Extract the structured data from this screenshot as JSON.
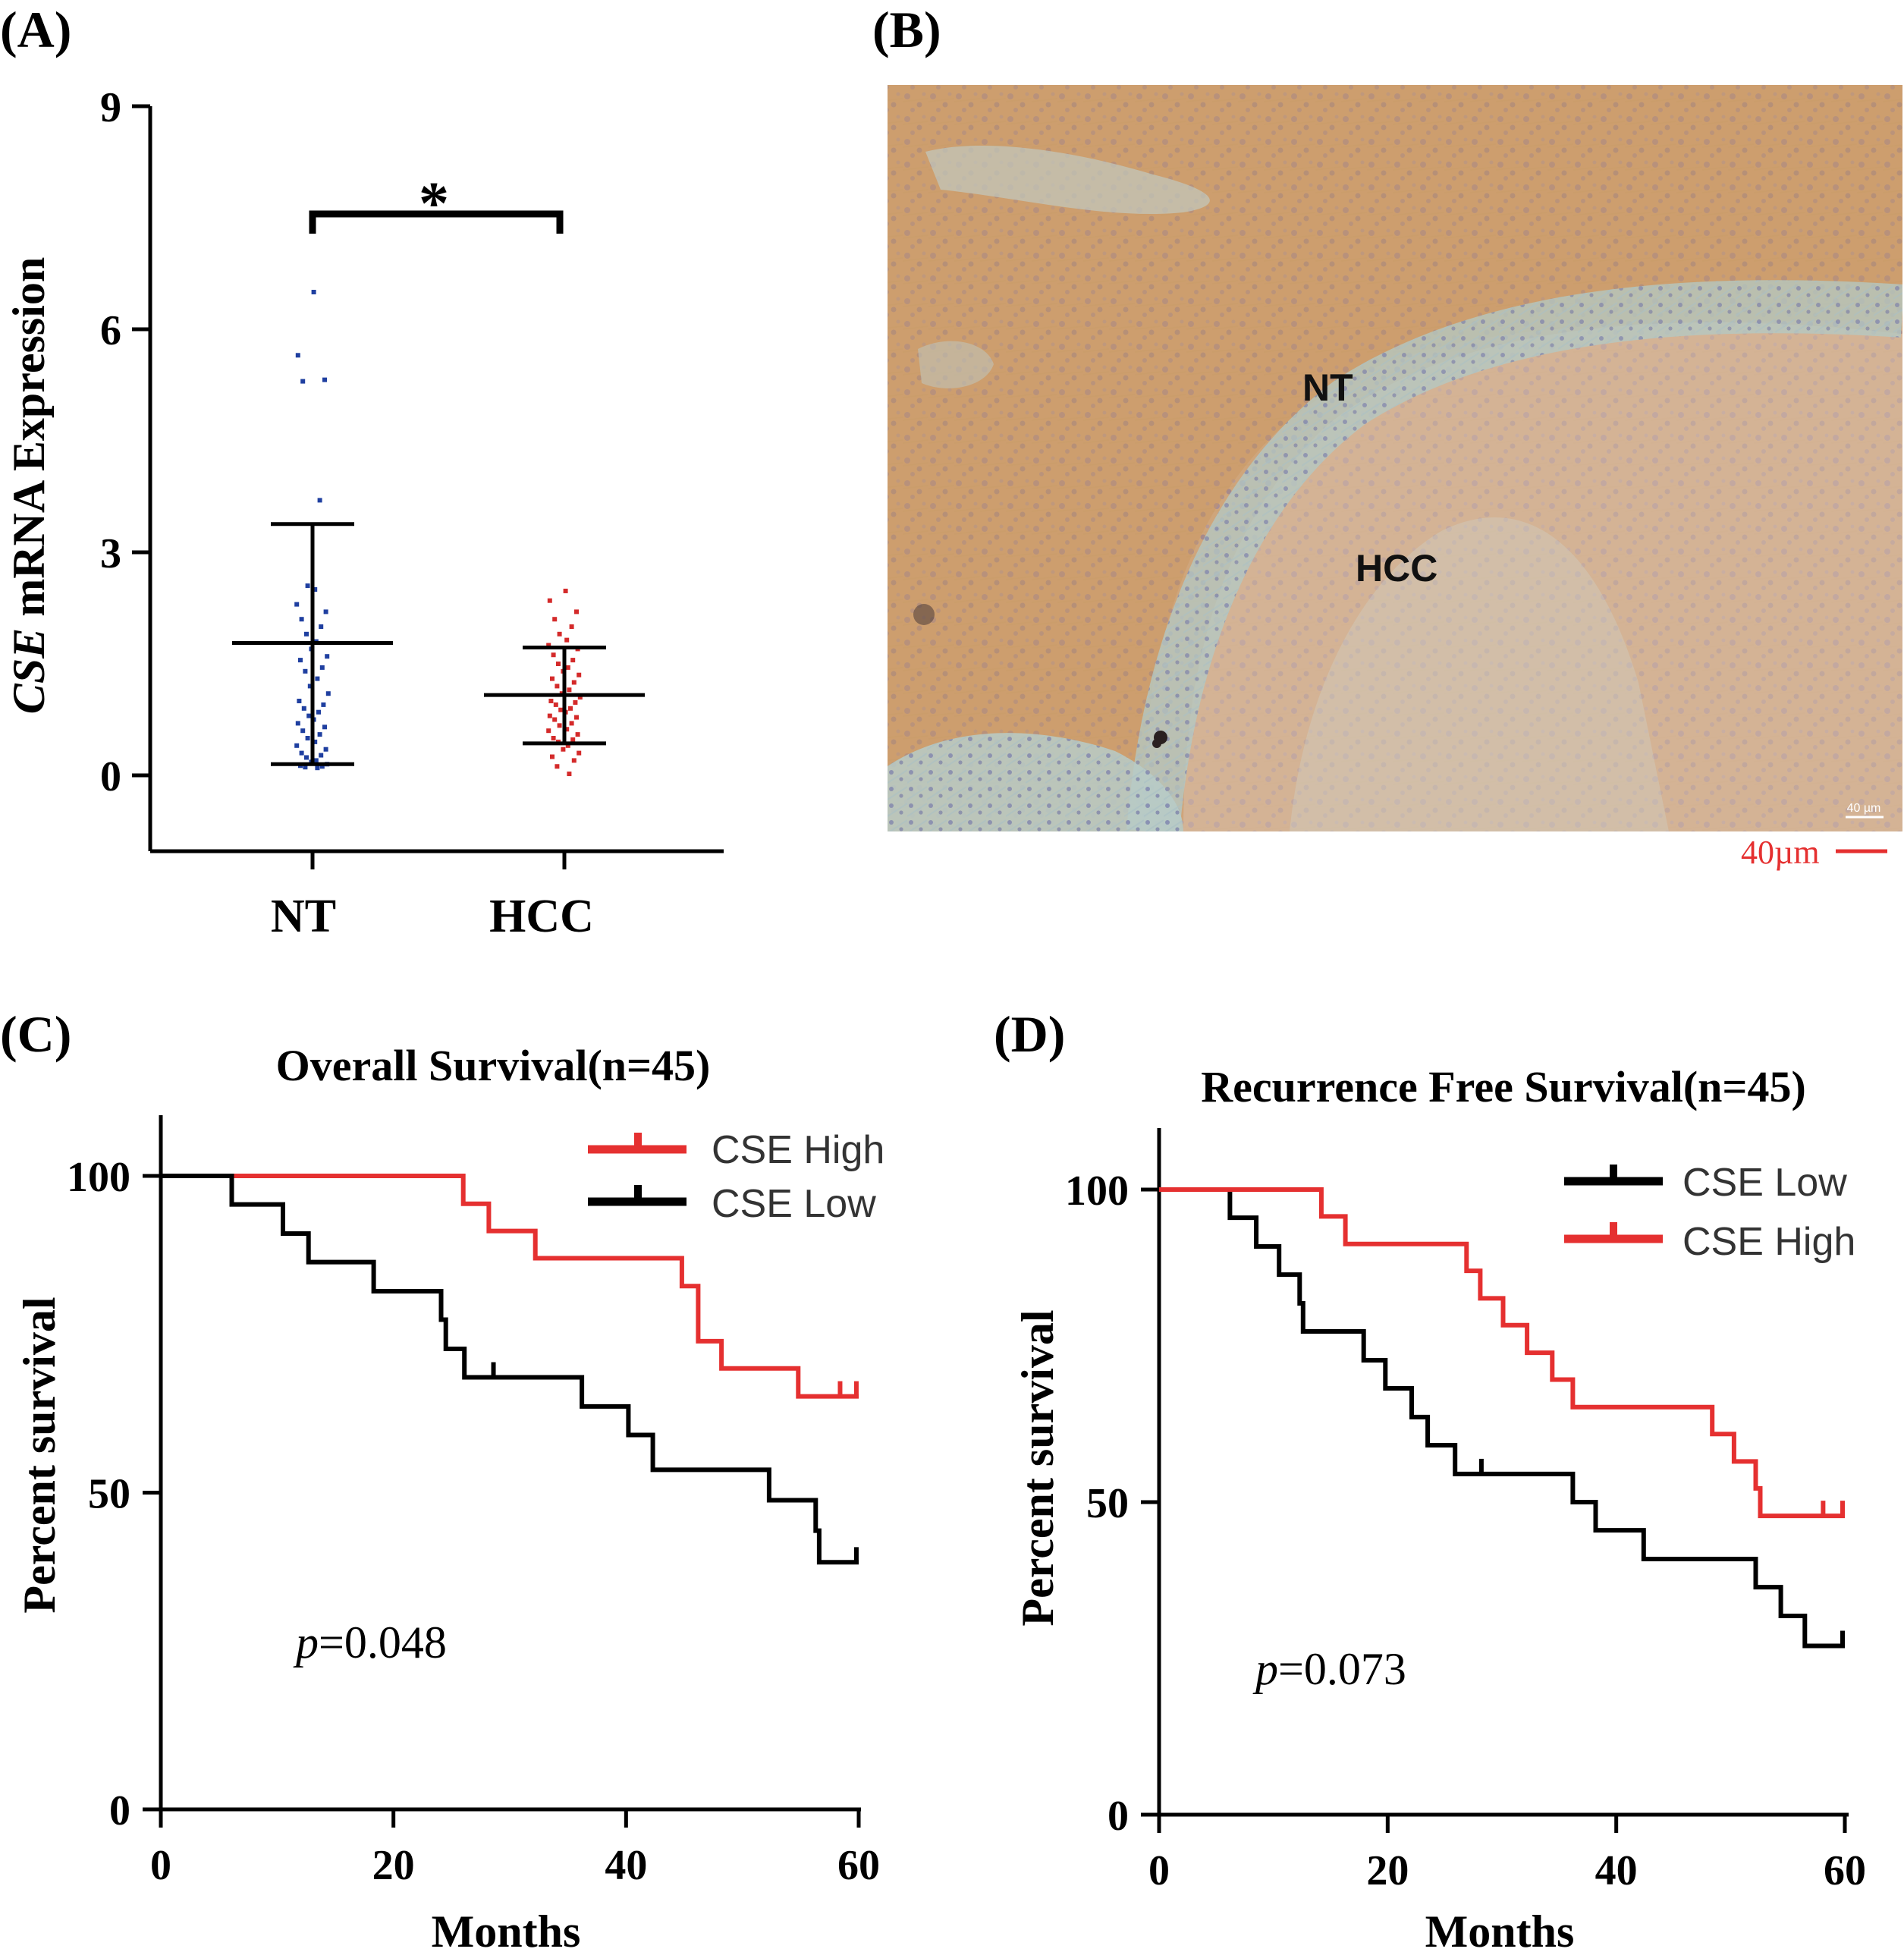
{
  "panels": {
    "a": "(A)",
    "b": "(B)",
    "c": "(C)",
    "d": "(D)"
  },
  "micrograph": {
    "label_nt": "NT",
    "label_hcc": "HCC",
    "scale_bar_text": "40µm",
    "inset_scale_text": "40 µm"
  },
  "chart_data": [
    {
      "id": "A",
      "type": "scatter",
      "title": "",
      "ylabel_italic": "CSE",
      "ylabel_rest": " mRNA Expression",
      "xlabel": "",
      "categories": [
        "NT",
        "HCC"
      ],
      "ylim": [
        -1,
        9
      ],
      "yticks": [
        0,
        3,
        6,
        9
      ],
      "significance": "*",
      "groups": [
        {
          "name": "NT",
          "color": "#1f3fa0",
          "mean": 1.78,
          "sd_low": 0.15,
          "sd_high": 3.38,
          "points": [
            6.5,
            5.65,
            5.32,
            5.3,
            3.7,
            2.55,
            2.5,
            2.3,
            2.2,
            2.1,
            2.0,
            1.9,
            1.8,
            1.7,
            1.6,
            1.55,
            1.45,
            1.4,
            1.3,
            1.2,
            1.1,
            1.0,
            0.95,
            0.9,
            0.85,
            0.8,
            0.75,
            0.7,
            0.65,
            0.6,
            0.55,
            0.5,
            0.45,
            0.4,
            0.35,
            0.3,
            0.27,
            0.24,
            0.2,
            0.18,
            0.15,
            0.13,
            0.12,
            0.11,
            0.1
          ]
        },
        {
          "name": "HCC",
          "color": "#d42a2a",
          "mean": 1.08,
          "sd_low": 0.43,
          "sd_high": 1.72,
          "points": [
            2.48,
            2.35,
            2.2,
            2.1,
            2.0,
            1.9,
            1.82,
            1.75,
            1.7,
            1.62,
            1.55,
            1.5,
            1.45,
            1.4,
            1.35,
            1.3,
            1.25,
            1.2,
            1.15,
            1.1,
            1.05,
            1.0,
            0.98,
            0.95,
            0.9,
            0.88,
            0.85,
            0.8,
            0.78,
            0.75,
            0.7,
            0.67,
            0.62,
            0.6,
            0.55,
            0.5,
            0.48,
            0.45,
            0.4,
            0.35,
            0.3,
            0.25,
            0.2,
            0.12,
            0.02
          ]
        }
      ]
    },
    {
      "id": "C",
      "type": "line",
      "title": "Overall Survival(n=45)",
      "xlabel": "Months",
      "ylabel": "Percent survival",
      "xlim": [
        0,
        60
      ],
      "ylim": [
        0,
        110
      ],
      "xticks": [
        0,
        20,
        40,
        60
      ],
      "yticks": [
        0,
        50,
        100
      ],
      "pvalue_italic": "p",
      "pvalue_rest": "=0.048",
      "legend_position": "top-right",
      "series": [
        {
          "name": "CSE High",
          "color": "#e53030",
          "steps": [
            [
              0,
              100
            ],
            [
              26,
              100
            ],
            [
              26,
              95.6
            ],
            [
              28.2,
              95.6
            ],
            [
              28.2,
              91.3
            ],
            [
              32.2,
              91.3
            ],
            [
              32.2,
              87
            ],
            [
              44.8,
              87
            ],
            [
              44.8,
              82.6
            ],
            [
              46.2,
              82.6
            ],
            [
              46.2,
              73.9
            ],
            [
              48.2,
              73.9
            ],
            [
              48.2,
              69.6
            ],
            [
              54.8,
              69.6
            ],
            [
              54.8,
              65.2
            ],
            [
              60,
              65.2
            ]
          ],
          "censors": [
            [
              58.4,
              65.2
            ],
            [
              59.8,
              65.2
            ]
          ]
        },
        {
          "name": "CSE Low",
          "color": "#000000",
          "steps": [
            [
              0,
              100
            ],
            [
              6.1,
              100
            ],
            [
              6.1,
              95.5
            ],
            [
              10.5,
              95.5
            ],
            [
              10.5,
              90.9
            ],
            [
              12.7,
              90.9
            ],
            [
              12.7,
              86.4
            ],
            [
              18.3,
              86.4
            ],
            [
              18.3,
              81.8
            ],
            [
              24.1,
              81.8
            ],
            [
              24.1,
              77.3
            ],
            [
              24.5,
              77.3
            ],
            [
              24.5,
              72.7
            ],
            [
              26.1,
              72.7
            ],
            [
              26.1,
              68.2
            ],
            [
              36.2,
              68.2
            ],
            [
              36.2,
              63.6
            ],
            [
              40.2,
              63.6
            ],
            [
              40.2,
              59.1
            ],
            [
              42.3,
              59.1
            ],
            [
              42.3,
              53.6
            ],
            [
              52.3,
              53.6
            ],
            [
              52.3,
              48.8
            ],
            [
              56.3,
              48.8
            ],
            [
              56.3,
              44
            ],
            [
              56.6,
              44
            ],
            [
              56.6,
              39
            ],
            [
              60,
              39
            ]
          ],
          "censors": [
            [
              28.6,
              68.2
            ],
            [
              59.8,
              39
            ]
          ]
        }
      ]
    },
    {
      "id": "D",
      "type": "line",
      "title": "Recurrence Free Survival(n=45)",
      "xlabel": "Months",
      "ylabel": "Percent survival",
      "xlim": [
        0,
        60
      ],
      "ylim": [
        0,
        110
      ],
      "xticks": [
        0,
        20,
        40,
        60
      ],
      "yticks": [
        0,
        50,
        100
      ],
      "pvalue_italic": "p",
      "pvalue_rest": "=0.073",
      "legend_position": "top-right",
      "series": [
        {
          "name": "CSE Low",
          "color": "#000000",
          "steps": [
            [
              0,
              100
            ],
            [
              6.2,
              100
            ],
            [
              6.2,
              95.5
            ],
            [
              8.5,
              95.5
            ],
            [
              8.5,
              90.9
            ],
            [
              10.5,
              90.9
            ],
            [
              10.5,
              86.4
            ],
            [
              12.3,
              86.4
            ],
            [
              12.3,
              81.8
            ],
            [
              12.6,
              81.8
            ],
            [
              12.6,
              77.3
            ],
            [
              17.9,
              77.3
            ],
            [
              17.9,
              72.7
            ],
            [
              19.8,
              72.7
            ],
            [
              19.8,
              68.2
            ],
            [
              22.1,
              68.2
            ],
            [
              22.1,
              63.6
            ],
            [
              23.5,
              63.6
            ],
            [
              23.5,
              59.1
            ],
            [
              25.9,
              59.1
            ],
            [
              25.9,
              54.5
            ],
            [
              36.2,
              54.5
            ],
            [
              36.2,
              50
            ],
            [
              38.2,
              50
            ],
            [
              38.2,
              45.5
            ],
            [
              42.4,
              45.5
            ],
            [
              42.4,
              40.9
            ],
            [
              52.2,
              40.9
            ],
            [
              52.2,
              36.4
            ],
            [
              54.4,
              36.4
            ],
            [
              54.4,
              31.8
            ],
            [
              56.5,
              31.8
            ],
            [
              56.5,
              27
            ],
            [
              60,
              27
            ]
          ],
          "censors": [
            [
              28.2,
              54.5
            ],
            [
              59.8,
              27
            ]
          ]
        },
        {
          "name": "CSE High",
          "color": "#e53030",
          "steps": [
            [
              0,
              100
            ],
            [
              14.2,
              100
            ],
            [
              14.2,
              95.7
            ],
            [
              16.3,
              95.7
            ],
            [
              16.3,
              91.3
            ],
            [
              26.9,
              91.3
            ],
            [
              26.9,
              87
            ],
            [
              28.1,
              87
            ],
            [
              28.1,
              82.6
            ],
            [
              30.1,
              82.6
            ],
            [
              30.1,
              78.3
            ],
            [
              32.2,
              78.3
            ],
            [
              32.2,
              73.9
            ],
            [
              34.4,
              73.9
            ],
            [
              34.4,
              69.6
            ],
            [
              36.2,
              69.6
            ],
            [
              36.2,
              65.2
            ],
            [
              48.4,
              65.2
            ],
            [
              48.4,
              60.9
            ],
            [
              50.3,
              60.9
            ],
            [
              50.3,
              56.5
            ],
            [
              52.2,
              56.5
            ],
            [
              52.2,
              52.2
            ],
            [
              52.6,
              52.2
            ],
            [
              52.6,
              47.8
            ],
            [
              60,
              47.8
            ]
          ],
          "censors": [
            [
              58.1,
              47.8
            ],
            [
              59.8,
              47.8
            ]
          ]
        }
      ]
    }
  ]
}
